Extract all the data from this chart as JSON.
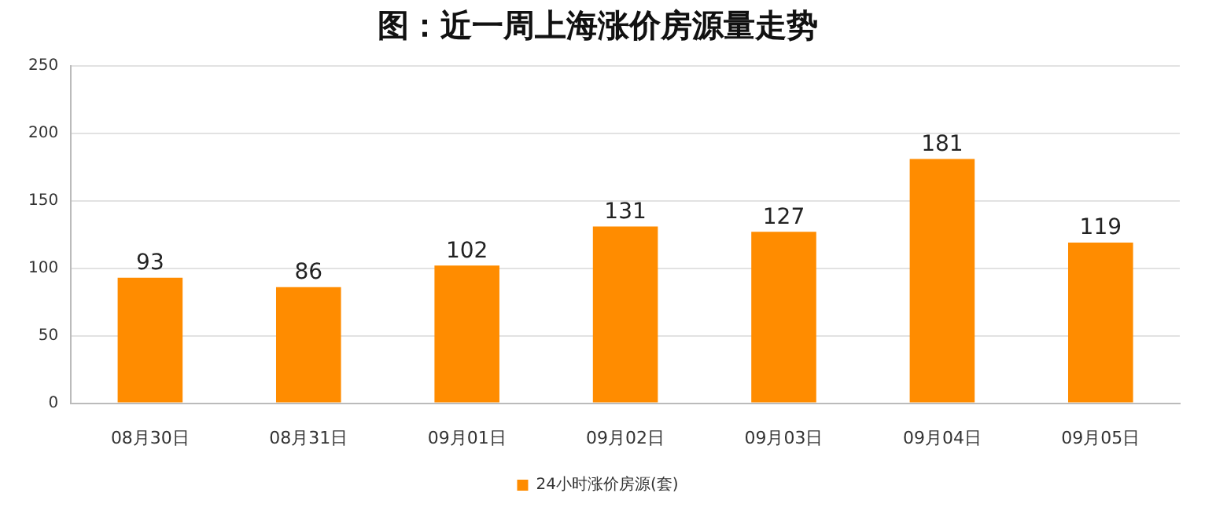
{
  "chart_data": {
    "type": "bar",
    "title": "图：近一周上海涨价房源量走势",
    "categories": [
      "08月30日",
      "08月31日",
      "09月01日",
      "09月02日",
      "09月03日",
      "09月04日",
      "09月05日"
    ],
    "series": [
      {
        "name": "24小时涨价房源(套)",
        "color": "#ff8c00",
        "values": [
          93,
          86,
          102,
          131,
          127,
          181,
          119
        ]
      }
    ],
    "ylim": [
      0,
      250
    ],
    "yticks": [
      0,
      50,
      100,
      150,
      200,
      250
    ],
    "grid": "y",
    "legend": "bottom",
    "data_labels": true
  }
}
